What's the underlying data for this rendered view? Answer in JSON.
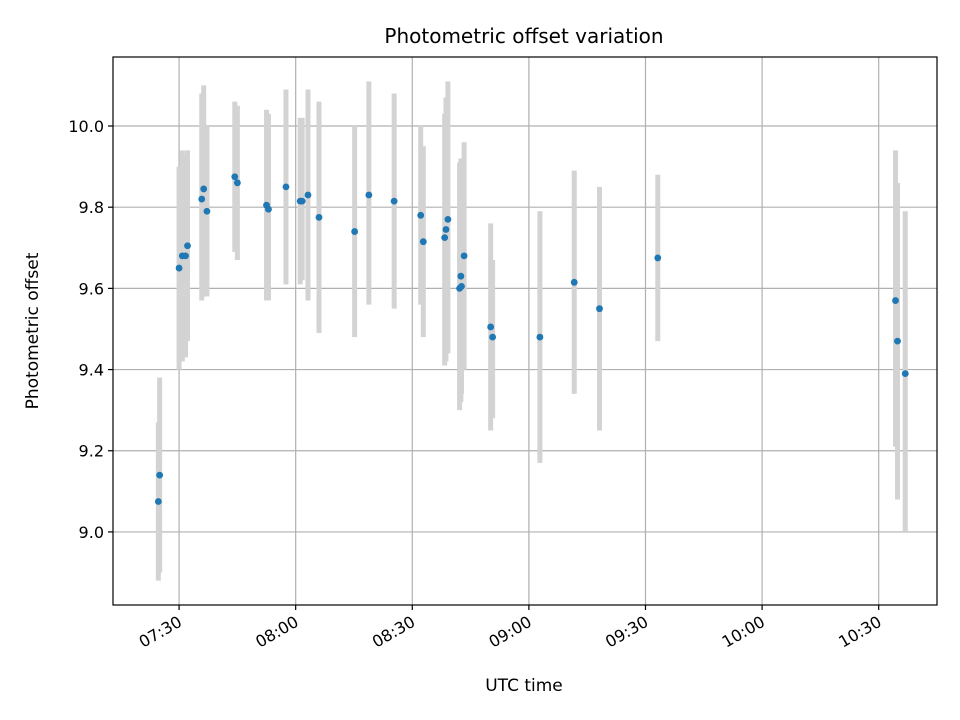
{
  "chart_data": {
    "type": "scatter",
    "title": "Photometric offset variation",
    "xlabel": "UTC time",
    "ylabel": "Photometric offset",
    "xlim": [
      "07:13",
      "10:45"
    ],
    "ylim": [
      8.82,
      10.17
    ],
    "x_ticks": [
      "07:30",
      "08:00",
      "08:30",
      "09:00",
      "09:30",
      "10:00",
      "10:30"
    ],
    "y_ticks": [
      9.0,
      9.2,
      9.4,
      9.6,
      9.8,
      10.0
    ],
    "grid": true,
    "point_color": "#1f77b4",
    "errorbar_color": "#d3d3d3",
    "points": [
      {
        "t": "07:24:40",
        "y": 9.075,
        "lo": 8.88,
        "hi": 9.27
      },
      {
        "t": "07:25:00",
        "y": 9.14,
        "lo": 8.9,
        "hi": 9.38
      },
      {
        "t": "07:30:00",
        "y": 9.65,
        "lo": 9.4,
        "hi": 9.9
      },
      {
        "t": "07:30:50",
        "y": 9.68,
        "lo": 9.42,
        "hi": 9.94
      },
      {
        "t": "07:31:40",
        "y": 9.68,
        "lo": 9.43,
        "hi": 9.93
      },
      {
        "t": "07:32:10",
        "y": 9.705,
        "lo": 9.47,
        "hi": 9.94
      },
      {
        "t": "07:35:50",
        "y": 9.82,
        "lo": 9.57,
        "hi": 10.08
      },
      {
        "t": "07:36:20",
        "y": 9.845,
        "lo": 9.58,
        "hi": 10.1
      },
      {
        "t": "07:37:10",
        "y": 9.79,
        "lo": 9.58,
        "hi": 10.0
      },
      {
        "t": "07:44:20",
        "y": 9.875,
        "lo": 9.69,
        "hi": 10.06
      },
      {
        "t": "07:45:00",
        "y": 9.86,
        "lo": 9.67,
        "hi": 10.05
      },
      {
        "t": "07:52:30",
        "y": 9.805,
        "lo": 9.57,
        "hi": 10.04
      },
      {
        "t": "07:53:00",
        "y": 9.795,
        "lo": 9.57,
        "hi": 10.03
      },
      {
        "t": "07:57:30",
        "y": 9.85,
        "lo": 9.61,
        "hi": 10.09
      },
      {
        "t": "08:01:10",
        "y": 9.815,
        "lo": 9.61,
        "hi": 10.02
      },
      {
        "t": "08:01:40",
        "y": 9.815,
        "lo": 9.62,
        "hi": 10.02
      },
      {
        "t": "08:03:10",
        "y": 9.83,
        "lo": 9.57,
        "hi": 10.09
      },
      {
        "t": "08:06:00",
        "y": 9.775,
        "lo": 9.49,
        "hi": 10.06
      },
      {
        "t": "08:15:10",
        "y": 9.74,
        "lo": 9.48,
        "hi": 10.0
      },
      {
        "t": "08:18:50",
        "y": 9.83,
        "lo": 9.56,
        "hi": 10.11
      },
      {
        "t": "08:25:20",
        "y": 9.815,
        "lo": 9.55,
        "hi": 10.08
      },
      {
        "t": "08:32:10",
        "y": 9.78,
        "lo": 9.56,
        "hi": 10.0
      },
      {
        "t": "08:32:50",
        "y": 9.715,
        "lo": 9.48,
        "hi": 9.95
      },
      {
        "t": "08:38:20",
        "y": 9.725,
        "lo": 9.41,
        "hi": 10.03
      },
      {
        "t": "08:38:40",
        "y": 9.745,
        "lo": 9.42,
        "hi": 10.07
      },
      {
        "t": "08:39:10",
        "y": 9.77,
        "lo": 9.44,
        "hi": 10.11
      },
      {
        "t": "08:42:10",
        "y": 9.6,
        "lo": 9.3,
        "hi": 9.91
      },
      {
        "t": "08:42:30",
        "y": 9.63,
        "lo": 9.32,
        "hi": 9.92
      },
      {
        "t": "08:42:40",
        "y": 9.605,
        "lo": 9.34,
        "hi": 9.87
      },
      {
        "t": "08:43:20",
        "y": 9.68,
        "lo": 9.4,
        "hi": 9.96
      },
      {
        "t": "08:50:10",
        "y": 9.505,
        "lo": 9.25,
        "hi": 9.76
      },
      {
        "t": "08:50:40",
        "y": 9.48,
        "lo": 9.28,
        "hi": 9.67
      },
      {
        "t": "09:02:50",
        "y": 9.48,
        "lo": 9.17,
        "hi": 9.79
      },
      {
        "t": "09:11:40",
        "y": 9.615,
        "lo": 9.34,
        "hi": 9.89
      },
      {
        "t": "09:18:10",
        "y": 9.55,
        "lo": 9.25,
        "hi": 9.85
      },
      {
        "t": "09:33:10",
        "y": 9.675,
        "lo": 9.47,
        "hi": 9.88
      },
      {
        "t": "10:34:20",
        "y": 9.57,
        "lo": 9.21,
        "hi": 9.94
      },
      {
        "t": "10:34:50",
        "y": 9.47,
        "lo": 9.08,
        "hi": 9.86
      },
      {
        "t": "10:36:50",
        "y": 9.39,
        "lo": 9.0,
        "hi": 9.79
      }
    ]
  }
}
